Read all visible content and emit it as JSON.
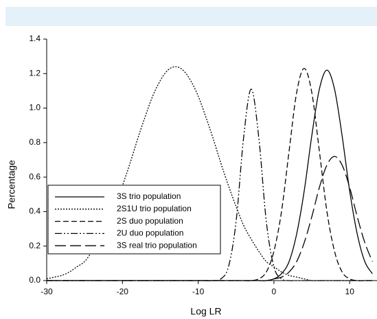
{
  "chart_data": {
    "type": "line",
    "xlabel": "Log LR",
    "ylabel": "Percentage",
    "x": [
      -30,
      -29,
      -28,
      -27,
      -26,
      -25,
      -24,
      -23,
      -22,
      -21,
      -20,
      -19,
      -18,
      -17,
      -16,
      -15,
      -14,
      -13,
      -12,
      -11,
      -10,
      -9,
      -8,
      -7,
      -6,
      -5,
      -4,
      -3,
      -2,
      -1,
      0,
      1,
      2,
      3,
      4,
      5,
      6,
      7,
      8,
      9,
      10,
      11,
      12,
      13
    ],
    "series": [
      {
        "name": "3S trio population",
        "color": "#000000",
        "dash": "none",
        "values": [
          0,
          0,
          0,
          0,
          0,
          0,
          0,
          0,
          0,
          0,
          0,
          0,
          0,
          0,
          0,
          0,
          0,
          0,
          0,
          0,
          0,
          0,
          0,
          0,
          0,
          0,
          0,
          0,
          0,
          0,
          0.01,
          0.04,
          0.11,
          0.27,
          0.52,
          0.84,
          1.11,
          1.22,
          1.11,
          0.84,
          0.52,
          0.27,
          0.11,
          0.04
        ]
      },
      {
        "name": "2S1U trio population",
        "color": "#000000",
        "dash": "2,2",
        "values": [
          0.01,
          0.02,
          0.03,
          0.05,
          0.08,
          0.11,
          0.17,
          0.24,
          0.32,
          0.43,
          0.55,
          0.68,
          0.82,
          0.95,
          1.07,
          1.16,
          1.22,
          1.24,
          1.22,
          1.16,
          1.07,
          0.95,
          0.82,
          0.68,
          0.55,
          0.43,
          0.32,
          0.24,
          0.17,
          0.11,
          0.08,
          0.05,
          0.03,
          0.02,
          0.01,
          0,
          0,
          0,
          0,
          0,
          0,
          0,
          0,
          0
        ]
      },
      {
        "name": "2S duo population",
        "color": "#000000",
        "dash": "8,4",
        "values": [
          0,
          0,
          0,
          0,
          0,
          0,
          0,
          0,
          0,
          0,
          0,
          0,
          0,
          0,
          0,
          0,
          0,
          0,
          0,
          0,
          0,
          0,
          0,
          0,
          0,
          0,
          0,
          0,
          0.01,
          0.05,
          0.17,
          0.4,
          0.75,
          1.09,
          1.23,
          1.09,
          0.75,
          0.4,
          0.17,
          0.05,
          0.01,
          0,
          0,
          0
        ]
      },
      {
        "name": "2U duo population",
        "color": "#000000",
        "dash": "10,3,2,3,2,3",
        "values": [
          0,
          0,
          0,
          0,
          0,
          0,
          0,
          0,
          0,
          0,
          0,
          0,
          0,
          0,
          0,
          0,
          0,
          0,
          0,
          0,
          0,
          0,
          0,
          0.01,
          0.08,
          0.34,
          0.83,
          1.11,
          0.83,
          0.34,
          0.08,
          0.01,
          0,
          0,
          0,
          0,
          0,
          0,
          0,
          0,
          0,
          0,
          0,
          0
        ]
      },
      {
        "name": "3S real trio population",
        "color": "#000000",
        "dash": "16,6",
        "values": [
          0,
          0,
          0,
          0,
          0,
          0,
          0,
          0,
          0,
          0,
          0,
          0,
          0,
          0,
          0,
          0,
          0,
          0,
          0,
          0,
          0,
          0,
          0,
          0,
          0,
          0,
          0,
          0,
          0,
          0,
          0.01,
          0.02,
          0.05,
          0.11,
          0.22,
          0.37,
          0.54,
          0.67,
          0.72,
          0.67,
          0.54,
          0.37,
          0.22,
          0.11
        ]
      }
    ],
    "xlim": [
      -30,
      13.6
    ],
    "ylim": [
      0,
      1.4
    ],
    "xticks": [
      -30,
      -20,
      -10,
      0,
      10
    ],
    "yticks": [
      {
        "value": 0,
        "label": "0.0"
      },
      0.2,
      0.4,
      0.6,
      0.8,
      {
        "value": 1,
        "label": "1.0"
      },
      1.2,
      1.4
    ]
  }
}
